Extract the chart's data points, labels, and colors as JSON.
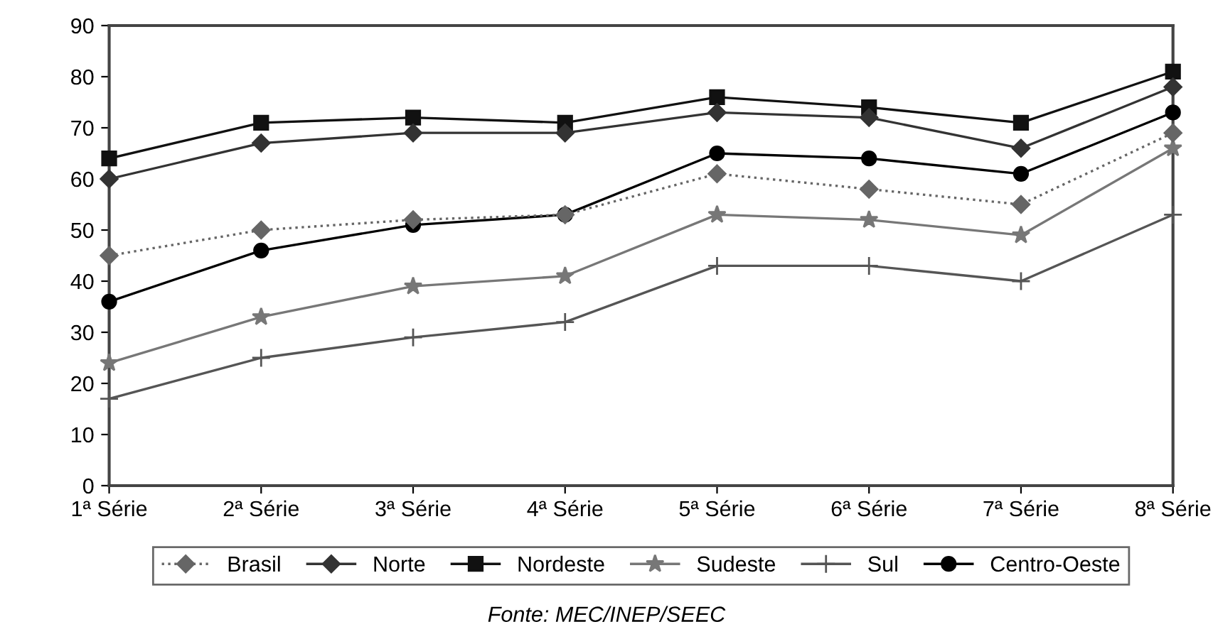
{
  "chart_data": {
    "type": "line",
    "categories": [
      "1ª Série",
      "2ª Série",
      "3ª Série",
      "4ª Série",
      "5ª Série",
      "6ª Série",
      "7ª Série",
      "8ª Série"
    ],
    "series": [
      {
        "name": "Brasil",
        "color": "#666666",
        "marker": "diamond",
        "line_style": "dotted",
        "values": [
          45,
          50,
          52,
          53,
          61,
          58,
          55,
          69
        ]
      },
      {
        "name": "Norte",
        "color": "#333333",
        "marker": "diamond",
        "line_style": "solid",
        "values": [
          60,
          67,
          69,
          69,
          73,
          72,
          66,
          78
        ]
      },
      {
        "name": "Nordeste",
        "color": "#111111",
        "marker": "square",
        "line_style": "solid",
        "values": [
          64,
          71,
          72,
          71,
          76,
          74,
          71,
          81
        ]
      },
      {
        "name": "Sudeste",
        "color": "#777777",
        "marker": "star",
        "line_style": "solid",
        "values": [
          24,
          33,
          39,
          41,
          53,
          52,
          49,
          66
        ]
      },
      {
        "name": "Sul",
        "color": "#555555",
        "marker": "cross",
        "line_style": "solid",
        "values": [
          17,
          25,
          29,
          32,
          43,
          43,
          40,
          53
        ]
      },
      {
        "name": "Centro-Oeste",
        "color": "#000000",
        "marker": "circle",
        "line_style": "solid",
        "values": [
          36,
          46,
          51,
          53,
          65,
          64,
          61,
          73
        ]
      }
    ],
    "ylim": [
      0,
      90
    ],
    "yticks": [
      0,
      10,
      20,
      30,
      40,
      50,
      60,
      70,
      80,
      90
    ],
    "grid": false,
    "legend": "bottom",
    "annotations": [
      "Fonte: MEC/INEP/SEEC"
    ]
  }
}
